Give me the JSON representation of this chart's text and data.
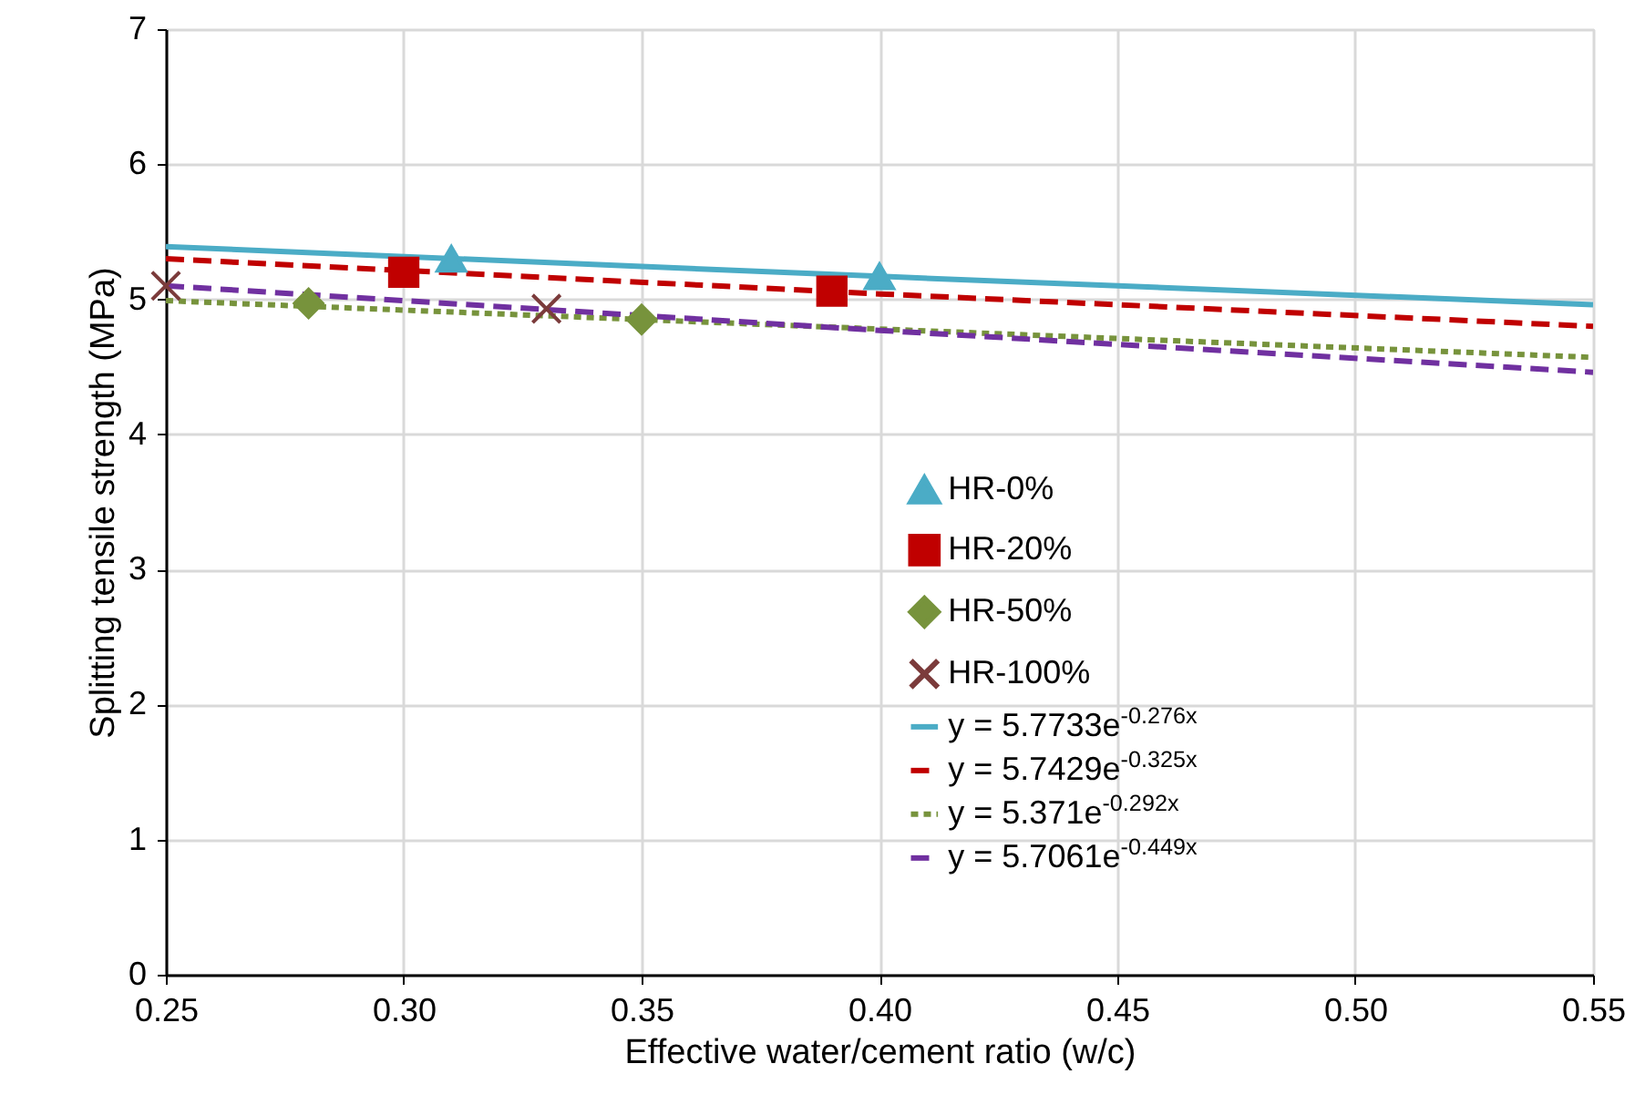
{
  "chart_data": {
    "type": "scatter",
    "xlabel": "Effective water/cement ratio (w/c)",
    "ylabel": "Splitting tensile strength (MPa)",
    "xlim": [
      0.25,
      0.55
    ],
    "ylim": [
      0,
      7
    ],
    "xticks": [
      0.25,
      {
        "value": 0.3,
        "label": "0.30"
      },
      0.35,
      {
        "value": 0.4,
        "label": "0.40"
      },
      0.45,
      {
        "value": 0.5,
        "label": "0.50"
      },
      0.55
    ],
    "yticks": [
      0,
      1,
      2,
      3,
      4,
      5,
      6,
      7
    ],
    "grid": true,
    "legend": "right",
    "series": [
      {
        "name": "HR-0%",
        "marker": "triangle",
        "color": "#4bacc6",
        "x": [
          0.31,
          0.4
        ],
        "values": [
          5.3,
          5.17
        ]
      },
      {
        "name": "HR-20%",
        "marker": "square",
        "color": "#c00000",
        "x": [
          0.3,
          0.39
        ],
        "values": [
          5.2,
          5.06
        ]
      },
      {
        "name": "HR-50%",
        "marker": "diamond",
        "color": "#77933c",
        "x": [
          0.28,
          0.35
        ],
        "values": [
          4.97,
          4.85
        ]
      },
      {
        "name": "HR-100%",
        "marker": "cross",
        "color": "#7b3b3b",
        "x": [
          0.25,
          0.33
        ],
        "values": [
          5.1,
          4.93
        ]
      },
      {
        "name": "y = 5.7733e$^{-0.276x}$",
        "type": "line",
        "line_style": "solid",
        "color": "#4bacc6",
        "x": [
          0.25,
          0.4,
          0.55
        ],
        "values": [
          5.39,
          5.17,
          4.96
        ]
      },
      {
        "name": "y = 5.7429e$^{-0.325x}$",
        "type": "line",
        "line_style": "dashed",
        "color": "#c00000",
        "x": [
          0.25,
          0.4,
          0.55
        ],
        "values": [
          5.3,
          5.04,
          4.8
        ]
      },
      {
        "name": "y = 5.371e$^{-0.292x}$",
        "type": "line",
        "line_style": "dotted",
        "color": "#77933c",
        "x": [
          0.25,
          0.4,
          0.55
        ],
        "values": [
          4.99,
          4.78,
          4.57
        ]
      },
      {
        "name": "y = 5.7061e$^{-0.449x}$",
        "type": "line",
        "line_style": "dashed",
        "color": "#7030a0",
        "x": [
          0.25,
          0.4,
          0.55
        ],
        "values": [
          5.1,
          4.77,
          4.46
        ]
      }
    ]
  }
}
